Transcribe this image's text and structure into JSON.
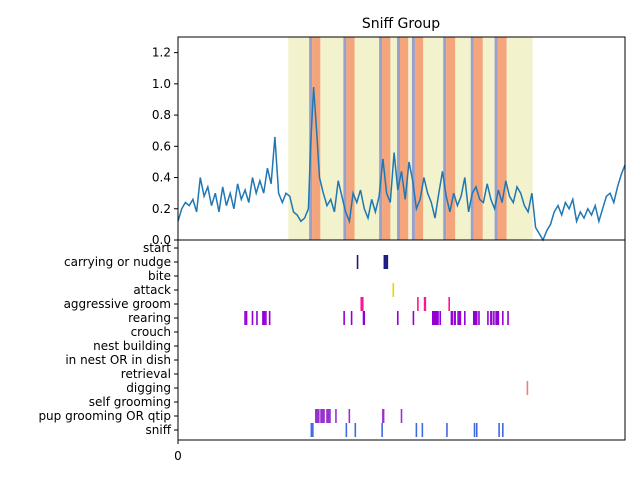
{
  "chart_data": [
    {
      "type": "line",
      "title": "Sniff Group",
      "xlabel": "",
      "ylabel": "",
      "xlim": [
        0,
        600
      ],
      "ylim": [
        0,
        1.3
      ],
      "yticks": [
        "0.0",
        "0.2",
        "0.4",
        "0.6",
        "0.8",
        "1.0",
        "1.2"
      ],
      "grid": false,
      "colors": {
        "line": "#1f77b4",
        "span_outer": "#f2f2cc",
        "span_blue": "#9aa0cc",
        "span_orange": "#f4a57c"
      },
      "spans": [
        {
          "kind": "outer",
          "x": [
            148,
            476
          ]
        },
        {
          "kind": "blue",
          "x": [
            176,
            180
          ]
        },
        {
          "kind": "orange",
          "x": [
            180,
            191
          ]
        },
        {
          "kind": "blue",
          "x": [
            222,
            226
          ]
        },
        {
          "kind": "orange",
          "x": [
            226,
            237
          ]
        },
        {
          "kind": "blue",
          "x": [
            270,
            274
          ]
        },
        {
          "kind": "orange",
          "x": [
            274,
            285
          ]
        },
        {
          "kind": "blue",
          "x": [
            294,
            298
          ]
        },
        {
          "kind": "orange",
          "x": [
            298,
            309
          ]
        },
        {
          "kind": "blue",
          "x": [
            314,
            318
          ]
        },
        {
          "kind": "orange",
          "x": [
            318,
            329
          ]
        },
        {
          "kind": "blue",
          "x": [
            356,
            360
          ]
        },
        {
          "kind": "orange",
          "x": [
            360,
            372
          ]
        },
        {
          "kind": "blue",
          "x": [
            393,
            397
          ]
        },
        {
          "kind": "orange",
          "x": [
            397,
            409
          ]
        },
        {
          "kind": "blue",
          "x": [
            425,
            429
          ]
        },
        {
          "kind": "orange",
          "x": [
            429,
            441
          ]
        }
      ],
      "x": [
        0,
        5,
        10,
        15,
        20,
        25,
        30,
        35,
        40,
        45,
        50,
        55,
        60,
        65,
        70,
        75,
        80,
        85,
        90,
        95,
        100,
        105,
        110,
        115,
        120,
        125,
        130,
        135,
        140,
        145,
        150,
        155,
        160,
        165,
        170,
        175,
        178,
        182,
        186,
        190,
        195,
        200,
        205,
        210,
        215,
        220,
        225,
        230,
        235,
        240,
        245,
        250,
        255,
        260,
        265,
        270,
        275,
        280,
        285,
        290,
        295,
        300,
        305,
        310,
        315,
        320,
        325,
        330,
        335,
        340,
        345,
        350,
        355,
        360,
        365,
        370,
        375,
        380,
        385,
        390,
        395,
        400,
        405,
        410,
        415,
        420,
        425,
        430,
        435,
        440,
        445,
        450,
        455,
        460,
        465,
        470,
        475,
        480,
        485,
        490,
        495,
        500,
        505,
        510,
        515,
        520,
        525,
        530,
        535,
        540,
        545,
        550,
        555,
        560,
        565,
        570,
        575,
        580,
        585,
        590,
        595,
        600
      ],
      "y": [
        0.12,
        0.2,
        0.24,
        0.22,
        0.26,
        0.18,
        0.4,
        0.28,
        0.34,
        0.22,
        0.3,
        0.18,
        0.34,
        0.22,
        0.3,
        0.2,
        0.36,
        0.26,
        0.32,
        0.24,
        0.4,
        0.3,
        0.38,
        0.3,
        0.46,
        0.36,
        0.66,
        0.3,
        0.24,
        0.3,
        0.28,
        0.18,
        0.16,
        0.12,
        0.14,
        0.2,
        0.6,
        0.98,
        0.7,
        0.4,
        0.3,
        0.22,
        0.26,
        0.18,
        0.38,
        0.28,
        0.18,
        0.12,
        0.3,
        0.24,
        0.32,
        0.2,
        0.14,
        0.26,
        0.18,
        0.28,
        0.52,
        0.3,
        0.24,
        0.56,
        0.32,
        0.44,
        0.26,
        0.5,
        0.38,
        0.2,
        0.26,
        0.4,
        0.3,
        0.24,
        0.14,
        0.3,
        0.44,
        0.28,
        0.18,
        0.3,
        0.22,
        0.28,
        0.4,
        0.18,
        0.3,
        0.34,
        0.26,
        0.24,
        0.36,
        0.26,
        0.2,
        0.32,
        0.24,
        0.38,
        0.28,
        0.24,
        0.34,
        0.3,
        0.22,
        0.18,
        0.3,
        0.08,
        0.04,
        0.0,
        0.06,
        0.1,
        0.18,
        0.22,
        0.16,
        0.24,
        0.2,
        0.26,
        0.12,
        0.18,
        0.14,
        0.2,
        0.16,
        0.22,
        0.12,
        0.2,
        0.28,
        0.3,
        0.24,
        0.34,
        0.42,
        0.48
      ]
    },
    {
      "type": "event-raster",
      "xlim": [
        0,
        600
      ],
      "xticks": [
        "0"
      ],
      "grid": false,
      "behaviors": [
        "start",
        "carrying or nudge",
        "bite",
        "attack",
        "aggressive groom",
        "rearing",
        "crouch",
        "nest building",
        "in nest OR in dish",
        "retrieval",
        "digging",
        "self grooming",
        "pup grooming OR qtip",
        "sniff"
      ],
      "colors": {
        "carrying or nudge": "#1a1a80",
        "attack": "#f0d000",
        "aggressive groom": "#ff1493",
        "rearing": "#9400d3",
        "digging": "#f08070",
        "pup grooming OR qtip": "#9932cc",
        "sniff": "#4169e1"
      },
      "events": [
        {
          "behavior": "carrying or nudge",
          "x": [
            241,
            277,
            279,
            281
          ]
        },
        {
          "behavior": "attack",
          "x": [
            289
          ]
        },
        {
          "behavior": "aggressive groom",
          "x": [
            246,
            247,
            248,
            322,
            331,
            332,
            364
          ]
        },
        {
          "behavior": "rearing",
          "x": [
            90,
            92,
            100,
            106,
            114,
            115,
            116,
            118,
            123,
            223,
            233,
            249,
            250,
            295,
            316,
            342,
            343,
            344,
            345,
            346,
            347,
            348,
            349,
            352,
            367,
            368,
            371,
            372,
            376,
            378,
            379,
            385,
            397,
            398,
            399,
            400,
            401,
            404,
            416,
            420,
            421,
            424,
            427,
            428,
            429,
            430,
            436,
            443
          ]
        },
        {
          "behavior": "digging",
          "x": [
            469
          ]
        },
        {
          "behavior": "pup grooming OR qtip",
          "x": [
            185,
            186,
            187,
            188,
            189,
            192,
            193,
            194,
            195,
            196,
            200,
            201,
            202,
            203,
            204,
            212,
            230,
            275,
            276,
            300
          ]
        },
        {
          "behavior": "sniff",
          "x": [
            179,
            181,
            226,
            238,
            274,
            320,
            328,
            361,
            398,
            401,
            431,
            436
          ]
        }
      ]
    }
  ]
}
